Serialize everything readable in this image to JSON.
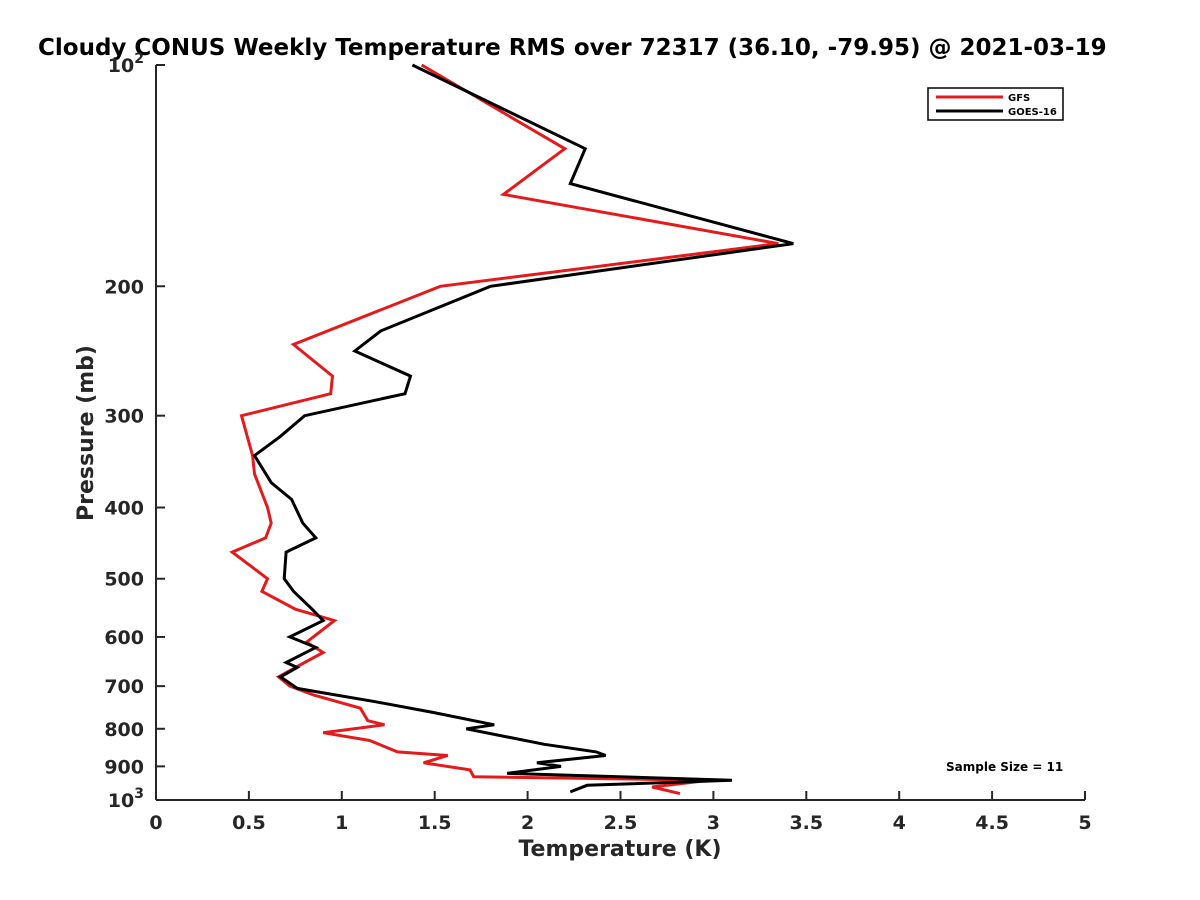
{
  "chart_data": {
    "type": "line",
    "title": "Cloudy CONUS Weekly Temperature RMS over 72317 (36.10, -79.95) @ 2021-03-19",
    "xlabel": "Temperature (K)",
    "ylabel": "Pressure (mb)",
    "xlim": [
      0,
      5
    ],
    "ylim": [
      100,
      1000
    ],
    "y_scale": "log",
    "y_reversed": true,
    "x_ticks": [
      "0",
      "0.5",
      "1",
      "1.5",
      "2",
      "2.5",
      "3",
      "3.5",
      "4",
      "4.5",
      "5"
    ],
    "y_ticks": [
      {
        "value": 100,
        "base": "10",
        "exp": "2"
      },
      {
        "value": 200,
        "label": "200"
      },
      {
        "value": 300,
        "label": "300"
      },
      {
        "value": 400,
        "label": "400"
      },
      {
        "value": 500,
        "label": "500"
      },
      {
        "value": 600,
        "label": "600"
      },
      {
        "value": 700,
        "label": "700"
      },
      {
        "value": 800,
        "label": "800"
      },
      {
        "value": 900,
        "label": "900"
      },
      {
        "value": 1000,
        "base": "10",
        "exp": "3"
      }
    ],
    "legend_position": "top-right",
    "grid": false,
    "annotation": "Sample Size = 11",
    "series": [
      {
        "name": "GFS",
        "color": "#e41a1c",
        "points": [
          [
            1.43,
            100
          ],
          [
            2.2,
            130
          ],
          [
            1.87,
            150
          ],
          [
            3.35,
            175
          ],
          [
            1.53,
            200
          ],
          [
            0.74,
            240
          ],
          [
            0.95,
            265
          ],
          [
            0.94,
            280
          ],
          [
            0.46,
            300
          ],
          [
            0.52,
            340
          ],
          [
            0.53,
            360
          ],
          [
            0.6,
            400
          ],
          [
            0.62,
            420
          ],
          [
            0.59,
            440
          ],
          [
            0.41,
            460
          ],
          [
            0.6,
            500
          ],
          [
            0.57,
            520
          ],
          [
            0.75,
            550
          ],
          [
            0.96,
            570
          ],
          [
            0.81,
            610
          ],
          [
            0.9,
            630
          ],
          [
            0.8,
            650
          ],
          [
            0.66,
            680
          ],
          [
            0.72,
            700
          ],
          [
            0.85,
            720
          ],
          [
            1.1,
            750
          ],
          [
            1.14,
            780
          ],
          [
            1.23,
            790
          ],
          [
            0.9,
            810
          ],
          [
            1.15,
            830
          ],
          [
            1.3,
            860
          ],
          [
            1.57,
            870
          ],
          [
            1.44,
            890
          ],
          [
            1.69,
            910
          ],
          [
            1.71,
            930
          ],
          [
            2.98,
            940
          ],
          [
            2.67,
            960
          ],
          [
            2.82,
            980
          ]
        ]
      },
      {
        "name": "GOES-16",
        "color": "#000000",
        "points": [
          [
            1.38,
            100
          ],
          [
            2.31,
            130
          ],
          [
            2.23,
            145
          ],
          [
            3.43,
            175
          ],
          [
            1.8,
            200
          ],
          [
            1.21,
            230
          ],
          [
            1.07,
            245
          ],
          [
            1.37,
            265
          ],
          [
            1.34,
            280
          ],
          [
            0.8,
            300
          ],
          [
            0.67,
            320
          ],
          [
            0.53,
            340
          ],
          [
            0.62,
            370
          ],
          [
            0.73,
            390
          ],
          [
            0.79,
            420
          ],
          [
            0.86,
            440
          ],
          [
            0.7,
            460
          ],
          [
            0.69,
            500
          ],
          [
            0.74,
            520
          ],
          [
            0.84,
            550
          ],
          [
            0.9,
            570
          ],
          [
            0.72,
            600
          ],
          [
            0.86,
            620
          ],
          [
            0.7,
            650
          ],
          [
            0.76,
            660
          ],
          [
            0.67,
            680
          ],
          [
            0.76,
            705
          ],
          [
            1.18,
            735
          ],
          [
            1.49,
            760
          ],
          [
            1.82,
            790
          ],
          [
            1.67,
            800
          ],
          [
            2.09,
            840
          ],
          [
            2.37,
            860
          ],
          [
            2.42,
            870
          ],
          [
            2.05,
            890
          ],
          [
            2.18,
            900
          ],
          [
            1.89,
            920
          ],
          [
            3.1,
            940
          ],
          [
            2.32,
            955
          ],
          [
            2.23,
            975
          ]
        ]
      }
    ]
  }
}
